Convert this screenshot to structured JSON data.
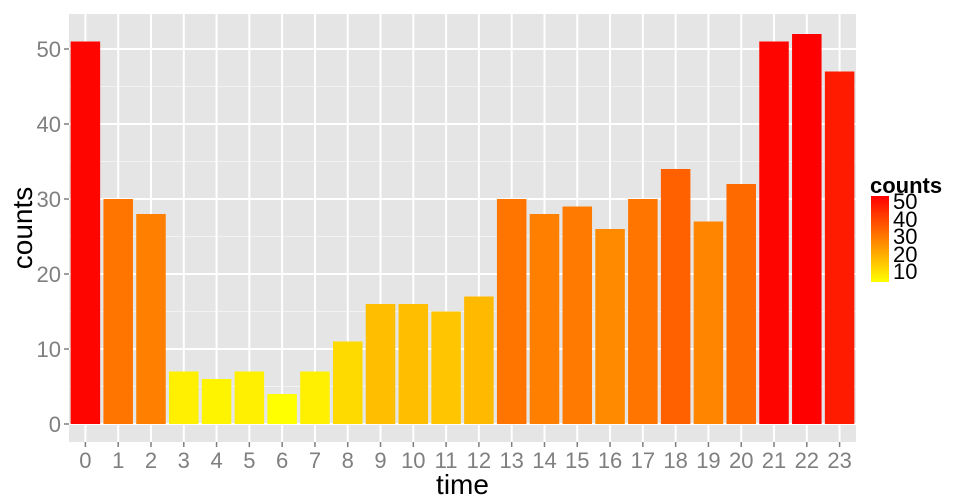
{
  "chart_data": {
    "type": "bar",
    "xlabel": "time",
    "ylabel": "counts",
    "categories": [
      "0",
      "1",
      "2",
      "3",
      "4",
      "5",
      "6",
      "7",
      "8",
      "9",
      "10",
      "11",
      "12",
      "13",
      "14",
      "15",
      "16",
      "17",
      "18",
      "19",
      "20",
      "21",
      "22",
      "23"
    ],
    "values": [
      51,
      30,
      28,
      7,
      6,
      7,
      4,
      7,
      11,
      16,
      16,
      15,
      17,
      30,
      28,
      29,
      26,
      30,
      34,
      27,
      32,
      51,
      52,
      47
    ],
    "ylim": [
      0,
      54
    ],
    "yticks": [
      0,
      10,
      20,
      30,
      40,
      50
    ],
    "grid": true,
    "legend": {
      "title": "counts",
      "position": "right",
      "labels": [
        "50",
        "40",
        "30",
        "20",
        "10"
      ],
      "low_color": "#ffff00",
      "high_color": "#ff0000",
      "range": [
        4,
        52
      ]
    },
    "colors": {
      "panel": "#e5e5e5",
      "grid_major": "#ffffff",
      "grid_minor": "#f2f2f2",
      "tick_text": "#7f7f7f"
    }
  }
}
